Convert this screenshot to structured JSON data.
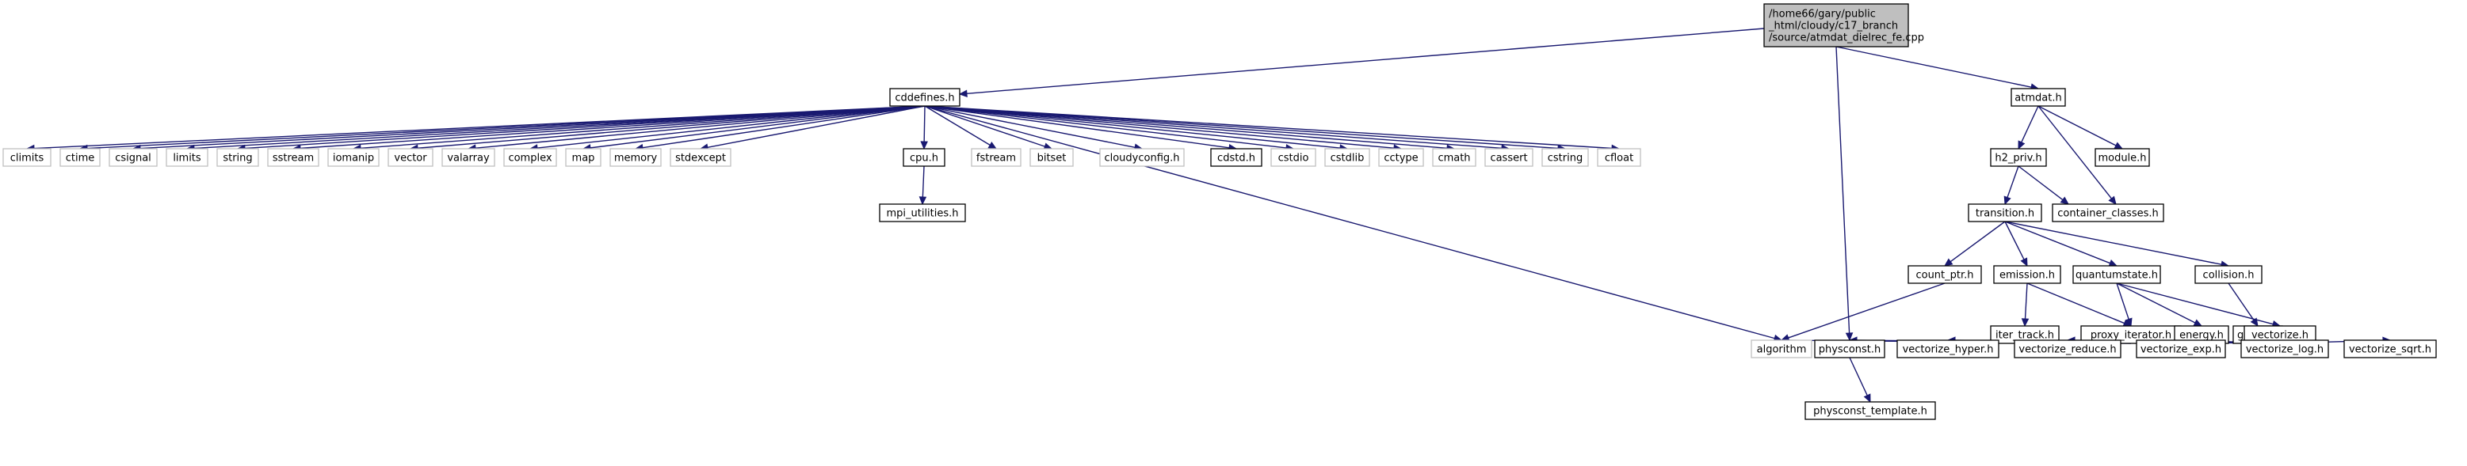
{
  "graph": {
    "root": {
      "id": "root",
      "lines": [
        "/home66/gary/public",
        "_html/cloudy/c17_branch",
        "/source/atmdat_dielrec_fe.cpp"
      ]
    },
    "nodes": [
      {
        "id": "cddefines",
        "label": "cddefines.h",
        "kind": "local"
      },
      {
        "id": "atmdat",
        "label": "atmdat.h",
        "kind": "local"
      },
      {
        "id": "climits",
        "label": "climits",
        "kind": "system"
      },
      {
        "id": "ctime",
        "label": "ctime",
        "kind": "system"
      },
      {
        "id": "csignal",
        "label": "csignal",
        "kind": "system"
      },
      {
        "id": "limits",
        "label": "limits",
        "kind": "system"
      },
      {
        "id": "string",
        "label": "string",
        "kind": "system"
      },
      {
        "id": "sstream",
        "label": "sstream",
        "kind": "system"
      },
      {
        "id": "iomanip",
        "label": "iomanip",
        "kind": "system"
      },
      {
        "id": "vector",
        "label": "vector",
        "kind": "system"
      },
      {
        "id": "valarray",
        "label": "valarray",
        "kind": "system"
      },
      {
        "id": "complex",
        "label": "complex",
        "kind": "system"
      },
      {
        "id": "map",
        "label": "map",
        "kind": "system"
      },
      {
        "id": "memory",
        "label": "memory",
        "kind": "system"
      },
      {
        "id": "stdexcept",
        "label": "stdexcept",
        "kind": "system"
      },
      {
        "id": "cpu",
        "label": "cpu.h",
        "kind": "local"
      },
      {
        "id": "fstream",
        "label": "fstream",
        "kind": "system"
      },
      {
        "id": "bitset",
        "label": "bitset",
        "kind": "system"
      },
      {
        "id": "cloudyconfig",
        "label": "cloudyconfig.h",
        "kind": "system"
      },
      {
        "id": "cdstd",
        "label": "cdstd.h",
        "kind": "local"
      },
      {
        "id": "cstdio",
        "label": "cstdio",
        "kind": "system"
      },
      {
        "id": "cstdlib",
        "label": "cstdlib",
        "kind": "system"
      },
      {
        "id": "cctype",
        "label": "cctype",
        "kind": "system"
      },
      {
        "id": "cmath",
        "label": "cmath",
        "kind": "system"
      },
      {
        "id": "cassert",
        "label": "cassert",
        "kind": "system"
      },
      {
        "id": "cstring",
        "label": "cstring",
        "kind": "system"
      },
      {
        "id": "cfloat",
        "label": "cfloat",
        "kind": "system"
      },
      {
        "id": "mpi_utilities",
        "label": "mpi_utilities.h",
        "kind": "local"
      },
      {
        "id": "algorithm",
        "label": "algorithm",
        "kind": "system"
      },
      {
        "id": "h2_priv",
        "label": "h2_priv.h",
        "kind": "local"
      },
      {
        "id": "module",
        "label": "module.h",
        "kind": "local"
      },
      {
        "id": "container_classes",
        "label": "container_classes.h",
        "kind": "local"
      },
      {
        "id": "transition",
        "label": "transition.h",
        "kind": "local"
      },
      {
        "id": "count_ptr",
        "label": "count_ptr.h",
        "kind": "local"
      },
      {
        "id": "emission",
        "label": "emission.h",
        "kind": "local"
      },
      {
        "id": "quantumstate",
        "label": "quantumstate.h",
        "kind": "local"
      },
      {
        "id": "collision",
        "label": "collision.h",
        "kind": "local"
      },
      {
        "id": "global",
        "label": "global.h",
        "kind": "local"
      },
      {
        "id": "iter_track",
        "label": "iter_track.h",
        "kind": "local"
      },
      {
        "id": "proxy_iterator",
        "label": "proxy_iterator.h",
        "kind": "local"
      },
      {
        "id": "energy",
        "label": "energy.h",
        "kind": "local"
      },
      {
        "id": "vectorize",
        "label": "vectorize.h",
        "kind": "local"
      },
      {
        "id": "physconst",
        "label": "physconst.h",
        "kind": "local"
      },
      {
        "id": "vectorize_hyper",
        "label": "vectorize_hyper.h",
        "kind": "local"
      },
      {
        "id": "vectorize_reduce",
        "label": "vectorize_reduce.h",
        "kind": "local"
      },
      {
        "id": "vectorize_exp",
        "label": "vectorize_exp.h",
        "kind": "local"
      },
      {
        "id": "vectorize_log",
        "label": "vectorize_log.h",
        "kind": "local"
      },
      {
        "id": "vectorize_sqrt",
        "label": "vectorize_sqrt.h",
        "kind": "local"
      },
      {
        "id": "physconst_template",
        "label": "physconst_template.h",
        "kind": "local"
      }
    ],
    "edges": [
      [
        "root",
        "cddefines"
      ],
      [
        "root",
        "atmdat"
      ],
      [
        "root",
        "physconst"
      ],
      [
        "cddefines",
        "climits"
      ],
      [
        "cddefines",
        "ctime"
      ],
      [
        "cddefines",
        "csignal"
      ],
      [
        "cddefines",
        "limits"
      ],
      [
        "cddefines",
        "string"
      ],
      [
        "cddefines",
        "sstream"
      ],
      [
        "cddefines",
        "iomanip"
      ],
      [
        "cddefines",
        "vector"
      ],
      [
        "cddefines",
        "valarray"
      ],
      [
        "cddefines",
        "complex"
      ],
      [
        "cddefines",
        "map"
      ],
      [
        "cddefines",
        "memory"
      ],
      [
        "cddefines",
        "stdexcept"
      ],
      [
        "cddefines",
        "cpu"
      ],
      [
        "cddefines",
        "fstream"
      ],
      [
        "cddefines",
        "bitset"
      ],
      [
        "cddefines",
        "cloudyconfig"
      ],
      [
        "cddefines",
        "cdstd"
      ],
      [
        "cddefines",
        "cstdio"
      ],
      [
        "cddefines",
        "cstdlib"
      ],
      [
        "cddefines",
        "cctype"
      ],
      [
        "cddefines",
        "cmath"
      ],
      [
        "cddefines",
        "cassert"
      ],
      [
        "cddefines",
        "cstring"
      ],
      [
        "cddefines",
        "cfloat"
      ],
      [
        "cddefines",
        "algorithm"
      ],
      [
        "cpu",
        "mpi_utilities"
      ],
      [
        "atmdat",
        "h2_priv"
      ],
      [
        "atmdat",
        "module"
      ],
      [
        "atmdat",
        "container_classes"
      ],
      [
        "h2_priv",
        "container_classes"
      ],
      [
        "h2_priv",
        "transition"
      ],
      [
        "transition",
        "count_ptr"
      ],
      [
        "transition",
        "emission"
      ],
      [
        "transition",
        "quantumstate"
      ],
      [
        "transition",
        "collision"
      ],
      [
        "count_ptr",
        "algorithm"
      ],
      [
        "emission",
        "iter_track"
      ],
      [
        "emission",
        "proxy_iterator"
      ],
      [
        "quantumstate",
        "proxy_iterator"
      ],
      [
        "quantumstate",
        "energy"
      ],
      [
        "quantumstate",
        "vectorize"
      ],
      [
        "collision",
        "global"
      ],
      [
        "proxy_iterator",
        "algorithm"
      ],
      [
        "energy",
        "physconst"
      ],
      [
        "vectorize",
        "vectorize_hyper"
      ],
      [
        "vectorize",
        "vectorize_reduce"
      ],
      [
        "vectorize",
        "vectorize_exp"
      ],
      [
        "vectorize",
        "vectorize_log"
      ],
      [
        "vectorize",
        "vectorize_sqrt"
      ],
      [
        "physconst",
        "physconst_template"
      ]
    ]
  }
}
